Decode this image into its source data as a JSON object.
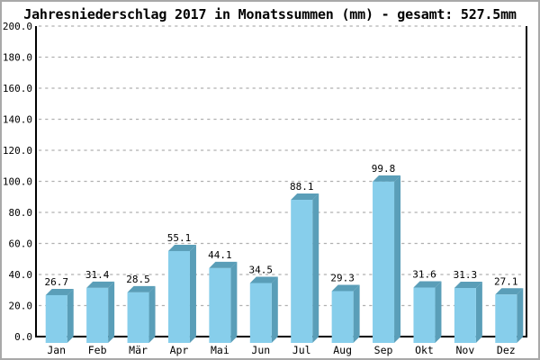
{
  "frame": {
    "background": "#ffffff",
    "border_color": "#a9a9a9"
  },
  "chart_data": {
    "type": "bar",
    "title": "Jahresniederschlag 2017 in Monatssummen (mm) - gesamt: 527.5mm",
    "total": "527.5mm",
    "categories": [
      "Jan",
      "Feb",
      "Mär",
      "Apr",
      "Mai",
      "Jun",
      "Jul",
      "Aug",
      "Sep",
      "Okt",
      "Nov",
      "Dez"
    ],
    "values": [
      26.7,
      31.4,
      28.5,
      55.1,
      44.1,
      34.5,
      88.1,
      29.3,
      99.8,
      31.6,
      31.3,
      27.1
    ],
    "value_labels": [
      "26.7",
      "31.4",
      "28.5",
      "55.1",
      "44.1",
      "34.5",
      "88.1",
      "29.3",
      "99.8",
      "31.6",
      "31.3",
      "27.1"
    ],
    "xlabel": "",
    "ylabel": "",
    "ylim": [
      0,
      200
    ],
    "ytick_step": 20,
    "ytick_labels": [
      "0.0",
      "20.0",
      "40.0",
      "60.0",
      "80.0",
      "100.0",
      "120.0",
      "140.0",
      "160.0",
      "180.0",
      "200.0"
    ],
    "grid": true,
    "legend": "none",
    "bar_style": "3d-extruded",
    "colors": {
      "bar_face": "#87CEEB",
      "bar_side": "#5A9EB8",
      "grid": "#b0b0b0",
      "axis": "#000000",
      "text": "#000000"
    }
  }
}
